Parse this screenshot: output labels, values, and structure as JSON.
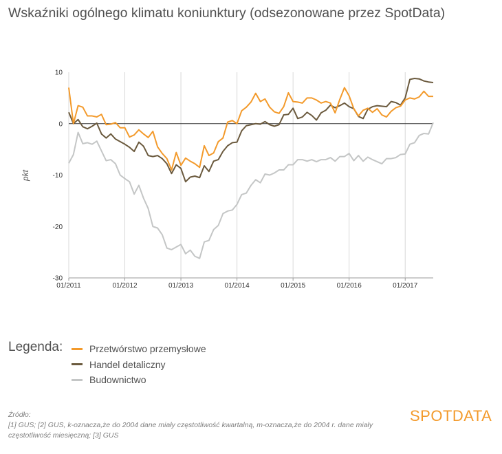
{
  "title": "Wskaźniki ogólnego klimatu koniunktury (odsezonowane przez SpotData)",
  "colors": {
    "przemysl": "#f39a2b",
    "handel": "#6b5a3e",
    "budownictwo": "#c4c6c6",
    "axis": "#333333",
    "grid": "#d8d8d8"
  },
  "legend": {
    "title": "Legenda:",
    "items": [
      {
        "label": "Przetwórstwo przemysłowe",
        "color": "#f39a2b"
      },
      {
        "label": "Handel detaliczny",
        "color": "#6b5a3e"
      },
      {
        "label": "Budownictwo",
        "color": "#c4c6c6"
      }
    ]
  },
  "source": {
    "heading": "Źródło:",
    "text": "[1] GUS; [2] GUS, k-oznacza,że do 2004 dane miały częstotliwość kwartalną, m-oznacza,że do 2004 r. dane miały częstotliwość miesięczną; [3] GUS"
  },
  "logo": {
    "text": "SPOTDATA"
  },
  "chart_data": {
    "type": "line",
    "title": "Wskaźniki ogólnego klimatu koniunktury (odsezonowane przez SpotData)",
    "ylabel": "pkt",
    "xlabel": "",
    "ylim": [
      -30,
      10
    ],
    "yticks": [
      10,
      0,
      -10,
      -20,
      -30
    ],
    "xticks": [
      {
        "label": "01/2011",
        "index": 0
      },
      {
        "label": "01/2012",
        "index": 12
      },
      {
        "label": "01/2013",
        "index": 24
      },
      {
        "label": "01/2014",
        "index": 36
      },
      {
        "label": "01/2015",
        "index": 48
      },
      {
        "label": "01/2016",
        "index": 60
      },
      {
        "label": "01/2017",
        "index": 72
      }
    ],
    "start": "01/2011",
    "end": "07/2017",
    "series": [
      {
        "name": "Przetwórstwo przemysłowe",
        "color": "#f39a2b",
        "values": [
          7.0,
          0.0,
          3.5,
          3.2,
          1.5,
          1.5,
          1.3,
          1.8,
          -0.2,
          -0.1,
          0.2,
          -0.8,
          -0.8,
          -2.6,
          -2.2,
          -1.2,
          -2.0,
          -2.7,
          -1.5,
          -4.5,
          -5.8,
          -6.8,
          -9.0,
          -5.6,
          -8.1,
          -6.7,
          -7.3,
          -7.8,
          -8.5,
          -4.3,
          -6.2,
          -5.7,
          -3.5,
          -2.8,
          0.3,
          0.6,
          0.0,
          2.5,
          3.2,
          4.2,
          5.9,
          4.3,
          4.8,
          3.2,
          2.3,
          2.0,
          3.3,
          6.0,
          4.3,
          4.2,
          4.0,
          5.0,
          5.0,
          4.6,
          4.0,
          4.3,
          4.0,
          2.1,
          4.7,
          7.0,
          5.4,
          2.9,
          1.5,
          2.6,
          3.0,
          2.2,
          2.9,
          1.7,
          1.3,
          2.4,
          3.1,
          3.4,
          4.6,
          5.0,
          4.8,
          5.2,
          6.3,
          5.3,
          5.3
        ]
      },
      {
        "name": "Handel detaliczny",
        "color": "#6b5a3e",
        "values": [
          2.2,
          0.0,
          0.8,
          -0.6,
          -1.0,
          -0.5,
          0.1,
          -2.0,
          -2.8,
          -2.0,
          -3.0,
          -3.5,
          -4.0,
          -4.6,
          -5.4,
          -3.6,
          -4.4,
          -6.2,
          -6.4,
          -6.2,
          -6.8,
          -7.8,
          -9.7,
          -8.0,
          -8.7,
          -11.3,
          -10.4,
          -10.2,
          -10.5,
          -8.2,
          -9.3,
          -7.3,
          -7.0,
          -5.4,
          -4.3,
          -3.7,
          -3.6,
          -1.4,
          -0.4,
          -0.2,
          0.0,
          -0.1,
          0.4,
          -0.2,
          -0.5,
          -0.2,
          1.7,
          1.8,
          3.0,
          1.0,
          1.3,
          2.2,
          1.6,
          0.7,
          2.1,
          2.6,
          3.6,
          3.1,
          3.5,
          4.0,
          3.3,
          2.9,
          1.4,
          1.0,
          2.8,
          3.3,
          3.5,
          3.4,
          3.3,
          4.3,
          4.1,
          3.6,
          5.0,
          8.6,
          8.8,
          8.7,
          8.3,
          8.1,
          8.0
        ]
      },
      {
        "name": "Budownictwo",
        "color": "#c4c6c6",
        "values": [
          -7.7,
          -6.0,
          -1.7,
          -3.9,
          -3.7,
          -4.0,
          -3.4,
          -5.3,
          -7.2,
          -7.0,
          -7.8,
          -10.0,
          -10.7,
          -11.3,
          -13.7,
          -12.0,
          -14.5,
          -16.5,
          -20.0,
          -20.3,
          -21.6,
          -24.2,
          -24.5,
          -24.0,
          -23.5,
          -25.3,
          -24.6,
          -25.8,
          -26.2,
          -23.0,
          -22.7,
          -20.6,
          -19.8,
          -17.5,
          -17.0,
          -16.8,
          -15.7,
          -13.8,
          -13.5,
          -12.0,
          -10.9,
          -11.5,
          -9.8,
          -10.0,
          -9.6,
          -9.0,
          -9.0,
          -8.0,
          -8.0,
          -7.0,
          -7.0,
          -7.3,
          -7.0,
          -7.4,
          -7.0,
          -7.0,
          -6.6,
          -7.3,
          -6.4,
          -6.4,
          -5.8,
          -7.2,
          -6.2,
          -7.3,
          -6.5,
          -7.0,
          -7.4,
          -7.8,
          -6.8,
          -6.8,
          -6.6,
          -6.0,
          -5.9,
          -4.0,
          -3.7,
          -2.3,
          -1.9,
          -2.0,
          0.2
        ]
      }
    ]
  }
}
